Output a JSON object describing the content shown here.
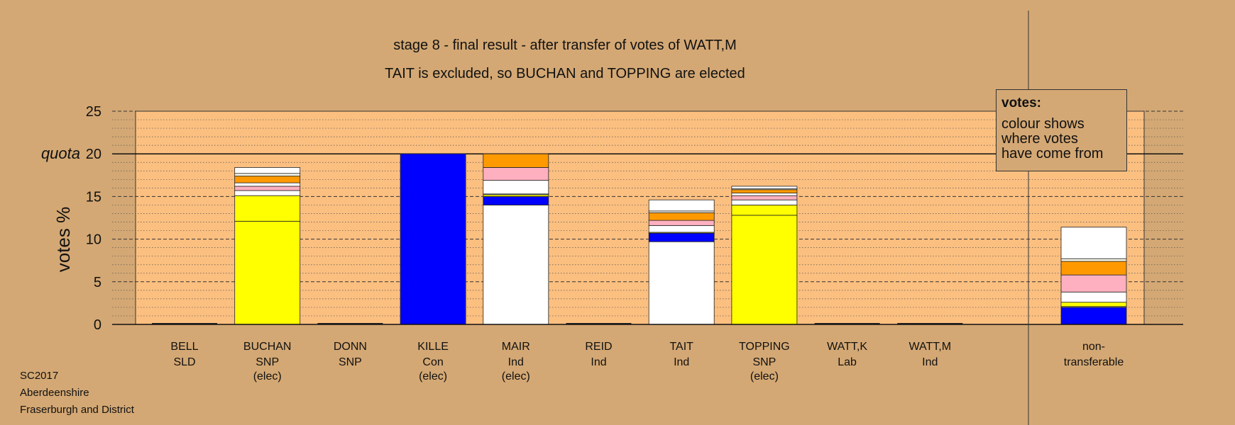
{
  "titles": {
    "line1": "stage 8 - final result - after transfer of votes of WATT,M",
    "line2": "TAIT is excluded, so BUCHAN and TOPPING are elected"
  },
  "footer": {
    "line1": "SC2017",
    "line2": "Aberdeenshire",
    "line3": "Fraserburgh and District"
  },
  "legend": {
    "title": "votes:",
    "line1": "colour shows",
    "line2": "where votes",
    "line3": "have come from"
  },
  "colors": {
    "background": "#d4a874",
    "plot_area": "#fbbf80",
    "SNP": "#ffff00",
    "Con": "#0000ff",
    "Ind": "#ffffff",
    "Lab": "#ff9900",
    "SLD": "#ffb0c0",
    "other": "#fffff0"
  },
  "chart_data": {
    "type": "bar",
    "stacked": true,
    "ylabel": "votes %",
    "ylim": [
      0,
      25
    ],
    "yticks": [
      0,
      5,
      10,
      15,
      20,
      25
    ],
    "quota": {
      "label": "quota",
      "value": 20
    },
    "grid": true,
    "candidates": [
      {
        "name": "BELL",
        "party": "SLD",
        "status": "",
        "segments": []
      },
      {
        "name": "BUCHAN",
        "party": "SNP",
        "status": "(elec)",
        "segments": [
          {
            "source": "own",
            "color": "#ffff00",
            "value": 12.1
          },
          {
            "source": "SNP transfer",
            "color": "#ffff00",
            "value": 3.0
          },
          {
            "source": "Ind",
            "color": "#ffffff",
            "value": 0.6
          },
          {
            "source": "SLD",
            "color": "#ffb0c0",
            "value": 0.5
          },
          {
            "source": "Ind",
            "color": "#ffffff",
            "value": 0.4
          },
          {
            "source": "Lab",
            "color": "#ff9900",
            "value": 0.8
          },
          {
            "source": "other",
            "color": "#fffff0",
            "value": 0.3
          },
          {
            "source": "Ind",
            "color": "#ffffff",
            "value": 0.7
          }
        ]
      },
      {
        "name": "DONN",
        "party": "SNP",
        "status": "",
        "segments": []
      },
      {
        "name": "KILLE",
        "party": "Con",
        "status": "(elec)",
        "segments": [
          {
            "source": "own",
            "color": "#0000ff",
            "value": 20.0
          }
        ]
      },
      {
        "name": "MAIR",
        "party": "Ind",
        "status": "(elec)",
        "segments": [
          {
            "source": "own",
            "color": "#ffffff",
            "value": 14.0
          },
          {
            "source": "Con",
            "color": "#0000ff",
            "value": 1.0
          },
          {
            "source": "SNP",
            "color": "#ffff00",
            "value": 0.2
          },
          {
            "source": "other",
            "color": "#fffff0",
            "value": 0.1
          },
          {
            "source": "Ind",
            "color": "#ffffff",
            "value": 1.6
          },
          {
            "source": "SLD",
            "color": "#ffb0c0",
            "value": 1.5
          },
          {
            "source": "Lab",
            "color": "#ff9900",
            "value": 1.6
          }
        ]
      },
      {
        "name": "REID",
        "party": "Ind",
        "status": "",
        "segments": []
      },
      {
        "name": "TAIT",
        "party": "Ind",
        "status": "",
        "segments": [
          {
            "source": "own",
            "color": "#ffffff",
            "value": 9.7
          },
          {
            "source": "Con",
            "color": "#0000ff",
            "value": 1.0
          },
          {
            "source": "SNP",
            "color": "#ffff00",
            "value": 0.1
          },
          {
            "source": "Ind",
            "color": "#ffffff",
            "value": 0.8
          },
          {
            "source": "SLD",
            "color": "#ffb0c0",
            "value": 0.6
          },
          {
            "source": "Lab",
            "color": "#ff9900",
            "value": 0.9
          },
          {
            "source": "other",
            "color": "#fffff0",
            "value": 0.2
          },
          {
            "source": "Ind",
            "color": "#ffffff",
            "value": 1.3
          }
        ]
      },
      {
        "name": "TOPPING",
        "party": "SNP",
        "status": "(elec)",
        "segments": [
          {
            "source": "own",
            "color": "#ffff00",
            "value": 12.8
          },
          {
            "source": "SNP transfer",
            "color": "#ffff00",
            "value": 1.2
          },
          {
            "source": "Ind",
            "color": "#ffffff",
            "value": 0.6
          },
          {
            "source": "SLD",
            "color": "#ffb0c0",
            "value": 0.5
          },
          {
            "source": "Ind",
            "color": "#ffffff",
            "value": 0.3
          },
          {
            "source": "Lab",
            "color": "#ff9900",
            "value": 0.4
          },
          {
            "source": "other",
            "color": "#fffff0",
            "value": 0.1
          },
          {
            "source": "Ind",
            "color": "#ffffff",
            "value": 0.3
          }
        ]
      },
      {
        "name": "WATT,K",
        "party": "Lab",
        "status": "",
        "segments": []
      },
      {
        "name": "WATT,M",
        "party": "Ind",
        "status": "",
        "segments": []
      }
    ],
    "nontransferable": {
      "label_line1": "non-",
      "label_line2": "transferable",
      "segments": [
        {
          "source": "Con",
          "color": "#0000ff",
          "value": 2.0
        },
        {
          "source": "other",
          "color": "#fffff0",
          "value": 0.1
        },
        {
          "source": "SNP",
          "color": "#ffff00",
          "value": 0.5
        },
        {
          "source": "Ind",
          "color": "#ffffff",
          "value": 1.2
        },
        {
          "source": "SLD",
          "color": "#ffb0c0",
          "value": 2.0
        },
        {
          "source": "Lab",
          "color": "#ff9900",
          "value": 1.6
        },
        {
          "source": "other",
          "color": "#fffff0",
          "value": 0.3
        },
        {
          "source": "Ind",
          "color": "#ffffff",
          "value": 3.7
        }
      ]
    }
  }
}
